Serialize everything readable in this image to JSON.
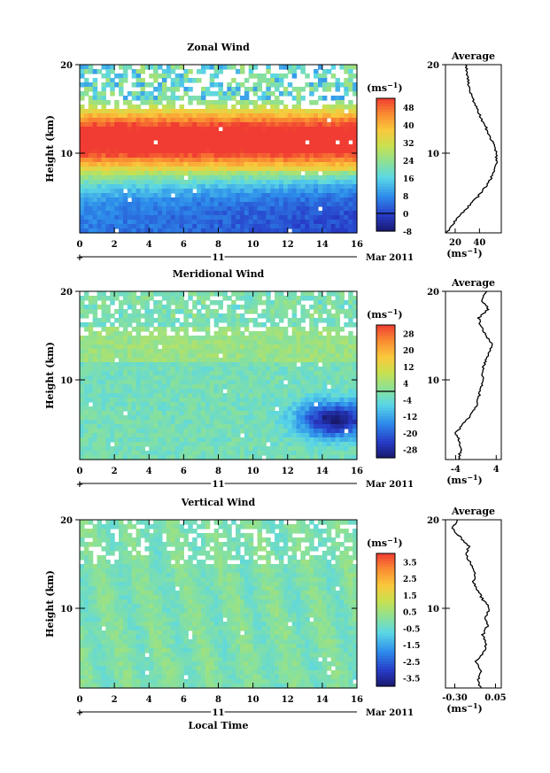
{
  "figure": {
    "colors": {
      "ink": "#000000",
      "blank": "#ffffff"
    }
  },
  "chart_data": [
    {
      "type": "heatmap",
      "title": "Zonal Wind",
      "ylabel": "Height (km)",
      "unit": "(ms",
      "unit_exp": "−1",
      "xlim": [
        0,
        16
      ],
      "ylim": [
        1,
        20
      ],
      "xticks": [
        0,
        2,
        4,
        6,
        8,
        10,
        12,
        14,
        16
      ],
      "yticks": [
        10,
        20
      ],
      "date_label": "11",
      "date_right": "Mar 2011",
      "colorbar": {
        "range": [
          -8,
          52
        ],
        "ticks": [
          "48",
          "40",
          "32",
          "24",
          "16",
          "8",
          "0",
          "-8"
        ],
        "tick_values": [
          48,
          40,
          32,
          24,
          16,
          8,
          0,
          -8
        ],
        "zero_line": 0
      },
      "field": "zonal",
      "profile": {
        "title": "Average",
        "xlim": [
          12,
          58
        ],
        "xticks": [
          "20",
          "40"
        ],
        "xtick_values": [
          20,
          40
        ],
        "xlabel": "(ms",
        "xlabel_exp": "−1",
        "yticks": [
          10,
          20
        ],
        "height": [
          1,
          2,
          3,
          4,
          5,
          6,
          7,
          8,
          9,
          10,
          11,
          12,
          13,
          14,
          15,
          16,
          17,
          18,
          19,
          20
        ],
        "values": [
          13,
          18,
          24,
          31,
          38,
          44,
          49,
          52,
          54,
          54,
          52,
          48,
          45,
          41,
          38,
          35,
          32,
          31,
          30,
          29
        ]
      }
    },
    {
      "type": "heatmap",
      "title": "Meridional Wind",
      "ylabel": "Height (km)",
      "unit": "(ms",
      "unit_exp": "−1",
      "xlim": [
        0,
        16
      ],
      "ylim": [
        1,
        20
      ],
      "xticks": [
        0,
        2,
        4,
        6,
        8,
        10,
        12,
        14,
        16
      ],
      "yticks": [
        10,
        20
      ],
      "date_label": "11",
      "date_right": "Mar 2011",
      "colorbar": {
        "range": [
          -32,
          32
        ],
        "ticks": [
          "28",
          "20",
          "12",
          "4",
          "-4",
          "-12",
          "-20",
          "-28"
        ],
        "tick_values": [
          28,
          20,
          12,
          4,
          -4,
          -12,
          -20,
          -28
        ],
        "zero_line": 0
      },
      "field": "meridional",
      "profile": {
        "title": "Average",
        "xlim": [
          -6,
          5
        ],
        "xticks": [
          "-4",
          "4"
        ],
        "xtick_values": [
          -4,
          4
        ],
        "xlabel": "(ms",
        "xlabel_exp": "−1",
        "yticks": [
          10,
          20
        ],
        "height": [
          1,
          2,
          3,
          4,
          5,
          6,
          7,
          8,
          9,
          10,
          11,
          12,
          13,
          14,
          15,
          16,
          17,
          18,
          19,
          20
        ],
        "values": [
          -3.5,
          -3.0,
          -3.2,
          -4.0,
          -2.5,
          -1.0,
          0.0,
          0.5,
          1.0,
          1.5,
          1.2,
          1.8,
          2.5,
          3.3,
          2.0,
          1.0,
          0.5,
          2.5,
          1.0,
          2.0
        ]
      }
    },
    {
      "type": "heatmap",
      "title": "Vertical Wind",
      "ylabel": "Height (km)",
      "xlabel": "Local Time",
      "unit": "(ms",
      "unit_exp": "−1",
      "xlim": [
        0,
        16
      ],
      "ylim": [
        1,
        20
      ],
      "xticks": [
        0,
        2,
        4,
        6,
        8,
        10,
        12,
        14,
        16
      ],
      "yticks": [
        10,
        20
      ],
      "date_label": "11",
      "date_right": "Mar 2011",
      "colorbar": {
        "range": [
          -4,
          4
        ],
        "ticks": [
          "3.5",
          "2.5",
          "1.5",
          "0.5",
          "-0.5",
          "-1.5",
          "-2.5",
          "-3.5"
        ],
        "tick_values": [
          3.5,
          2.5,
          1.5,
          0.5,
          -0.5,
          -1.5,
          -2.5,
          -3.5
        ],
        "zero_line": null
      },
      "field": "vertical",
      "profile": {
        "title": "Average",
        "xlim": [
          -0.38,
          0.1
        ],
        "xticks": [
          "-0.30",
          "0.05"
        ],
        "xtick_values": [
          -0.3,
          0.05
        ],
        "xlabel": "(ms",
        "xlabel_exp": "−1",
        "yticks": [
          10,
          20
        ],
        "height": [
          1,
          2,
          3,
          4,
          5,
          6,
          7,
          8,
          9,
          10,
          11,
          12,
          13,
          14,
          15,
          16,
          17,
          18,
          19,
          20
        ],
        "values": [
          -0.08,
          -0.1,
          -0.07,
          -0.12,
          -0.05,
          -0.03,
          -0.06,
          -0.02,
          -0.04,
          0.0,
          -0.06,
          -0.1,
          -0.14,
          -0.12,
          -0.16,
          -0.2,
          -0.18,
          -0.25,
          -0.32,
          -0.28
        ]
      }
    }
  ]
}
